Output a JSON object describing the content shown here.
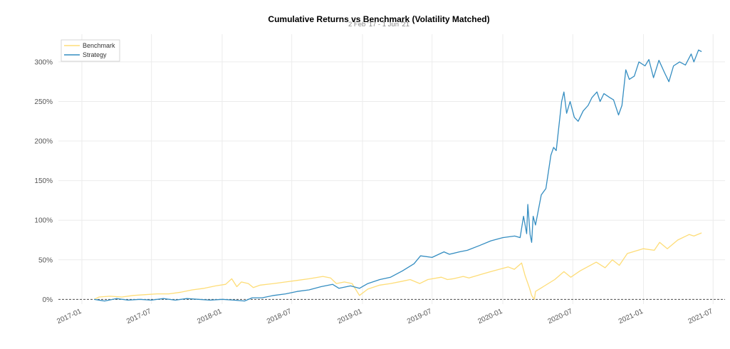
{
  "chart_data": {
    "type": "line",
    "title": "Cumulative Returns vs Benchmark (Volatility Matched)",
    "subtitle": "2 Feb '17 - 1 Jun '21",
    "xlabel": "",
    "ylabel": "",
    "ylim": [
      -0.06,
      3.35
    ],
    "xlim": [
      "2016-11-01",
      "2021-08-01"
    ],
    "y_tick_labels": [
      "0%",
      "50%",
      "100%",
      "150%",
      "200%",
      "250%",
      "300%"
    ],
    "y_tick_values": [
      0,
      0.5,
      1.0,
      1.5,
      2.0,
      2.5,
      3.0
    ],
    "x_tick_labels": [
      "2017-01",
      "2017-07",
      "2018-01",
      "2018-07",
      "2019-01",
      "2019-07",
      "2020-01",
      "2020-07",
      "2021-01",
      "2021-07"
    ],
    "x_tick_values": [
      "2017-01-01",
      "2017-07-01",
      "2018-01-01",
      "2018-07-01",
      "2019-01-01",
      "2019-07-01",
      "2020-01-01",
      "2020-07-01",
      "2021-01-01",
      "2021-07-01"
    ],
    "grid": true,
    "zero_line": "dashed",
    "legend": "top-left",
    "series": [
      {
        "name": "Benchmark",
        "color": "#fedd78",
        "points": [
          [
            "2017-02-02",
            0.0
          ],
          [
            "2017-02-15",
            0.03
          ],
          [
            "2017-03-15",
            0.04
          ],
          [
            "2017-04-15",
            0.03
          ],
          [
            "2017-05-15",
            0.05
          ],
          [
            "2017-06-15",
            0.06
          ],
          [
            "2017-07-15",
            0.07
          ],
          [
            "2017-08-15",
            0.07
          ],
          [
            "2017-09-15",
            0.09
          ],
          [
            "2017-10-15",
            0.12
          ],
          [
            "2017-11-15",
            0.14
          ],
          [
            "2017-12-15",
            0.17
          ],
          [
            "2018-01-10",
            0.19
          ],
          [
            "2018-01-26",
            0.26
          ],
          [
            "2018-02-08",
            0.16
          ],
          [
            "2018-02-20",
            0.22
          ],
          [
            "2018-03-10",
            0.2
          ],
          [
            "2018-03-23",
            0.15
          ],
          [
            "2018-04-10",
            0.18
          ],
          [
            "2018-05-15",
            0.2
          ],
          [
            "2018-06-15",
            0.22
          ],
          [
            "2018-07-15",
            0.24
          ],
          [
            "2018-08-15",
            0.26
          ],
          [
            "2018-09-20",
            0.29
          ],
          [
            "2018-10-10",
            0.27
          ],
          [
            "2018-10-25",
            0.2
          ],
          [
            "2018-11-15",
            0.22
          ],
          [
            "2018-12-05",
            0.2
          ],
          [
            "2018-12-24",
            0.05
          ],
          [
            "2019-01-15",
            0.13
          ],
          [
            "2019-02-15",
            0.18
          ],
          [
            "2019-03-15",
            0.2
          ],
          [
            "2019-04-15",
            0.23
          ],
          [
            "2019-05-05",
            0.25
          ],
          [
            "2019-05-30",
            0.2
          ],
          [
            "2019-06-20",
            0.25
          ],
          [
            "2019-07-25",
            0.28
          ],
          [
            "2019-08-10",
            0.25
          ],
          [
            "2019-08-25",
            0.26
          ],
          [
            "2019-09-20",
            0.29
          ],
          [
            "2019-10-05",
            0.27
          ],
          [
            "2019-11-15",
            0.33
          ],
          [
            "2019-12-15",
            0.37
          ],
          [
            "2020-01-15",
            0.41
          ],
          [
            "2020-01-31",
            0.38
          ],
          [
            "2020-02-19",
            0.46
          ],
          [
            "2020-02-28",
            0.3
          ],
          [
            "2020-03-10",
            0.15
          ],
          [
            "2020-03-16",
            0.05
          ],
          [
            "2020-03-23",
            0.0
          ],
          [
            "2020-03-26",
            0.1
          ],
          [
            "2020-04-15",
            0.16
          ],
          [
            "2020-05-15",
            0.25
          ],
          [
            "2020-06-08",
            0.35
          ],
          [
            "2020-06-26",
            0.28
          ],
          [
            "2020-07-20",
            0.36
          ],
          [
            "2020-08-31",
            0.47
          ],
          [
            "2020-09-23",
            0.4
          ],
          [
            "2020-10-12",
            0.5
          ],
          [
            "2020-10-30",
            0.43
          ],
          [
            "2020-11-20",
            0.58
          ],
          [
            "2020-12-31",
            0.64
          ],
          [
            "2021-01-29",
            0.62
          ],
          [
            "2021-02-12",
            0.72
          ],
          [
            "2021-03-04",
            0.64
          ],
          [
            "2021-03-31",
            0.75
          ],
          [
            "2021-04-30",
            0.82
          ],
          [
            "2021-05-12",
            0.8
          ],
          [
            "2021-06-01",
            0.84
          ]
        ]
      },
      {
        "name": "Strategy",
        "color": "#348dc1",
        "points": [
          [
            "2017-02-02",
            0.0
          ],
          [
            "2017-03-01",
            -0.02
          ],
          [
            "2017-04-01",
            0.01
          ],
          [
            "2017-05-01",
            -0.01
          ],
          [
            "2017-06-01",
            0.0
          ],
          [
            "2017-07-01",
            -0.01
          ],
          [
            "2017-08-01",
            0.01
          ],
          [
            "2017-09-01",
            -0.01
          ],
          [
            "2017-10-01",
            0.01
          ],
          [
            "2017-11-01",
            0.0
          ],
          [
            "2017-12-01",
            -0.01
          ],
          [
            "2018-01-01",
            0.0
          ],
          [
            "2018-02-01",
            -0.01
          ],
          [
            "2018-02-28",
            -0.02
          ],
          [
            "2018-03-20",
            0.02
          ],
          [
            "2018-04-15",
            0.02
          ],
          [
            "2018-05-15",
            0.05
          ],
          [
            "2018-06-15",
            0.07
          ],
          [
            "2018-07-15",
            0.1
          ],
          [
            "2018-08-15",
            0.12
          ],
          [
            "2018-09-15",
            0.16
          ],
          [
            "2018-10-15",
            0.19
          ],
          [
            "2018-11-01",
            0.14
          ],
          [
            "2018-12-01",
            0.17
          ],
          [
            "2018-12-24",
            0.14
          ],
          [
            "2019-01-15",
            0.2
          ],
          [
            "2019-02-15",
            0.25
          ],
          [
            "2019-03-15",
            0.28
          ],
          [
            "2019-04-15",
            0.36
          ],
          [
            "2019-05-15",
            0.45
          ],
          [
            "2019-06-01",
            0.55
          ],
          [
            "2019-07-01",
            0.53
          ],
          [
            "2019-08-01",
            0.6
          ],
          [
            "2019-08-15",
            0.57
          ],
          [
            "2019-09-10",
            0.6
          ],
          [
            "2019-10-01",
            0.62
          ],
          [
            "2019-11-01",
            0.68
          ],
          [
            "2019-12-01",
            0.74
          ],
          [
            "2020-01-01",
            0.78
          ],
          [
            "2020-02-01",
            0.8
          ],
          [
            "2020-02-15",
            0.78
          ],
          [
            "2020-02-24",
            1.05
          ],
          [
            "2020-03-03",
            0.83
          ],
          [
            "2020-03-06",
            1.2
          ],
          [
            "2020-03-12",
            0.82
          ],
          [
            "2020-03-16",
            0.72
          ],
          [
            "2020-03-20",
            1.05
          ],
          [
            "2020-03-26",
            0.94
          ],
          [
            "2020-04-10",
            1.32
          ],
          [
            "2020-04-22",
            1.4
          ],
          [
            "2020-05-05",
            1.82
          ],
          [
            "2020-05-12",
            1.92
          ],
          [
            "2020-05-19",
            1.88
          ],
          [
            "2020-05-25",
            2.15
          ],
          [
            "2020-06-02",
            2.5
          ],
          [
            "2020-06-08",
            2.62
          ],
          [
            "2020-06-15",
            2.35
          ],
          [
            "2020-06-24",
            2.5
          ],
          [
            "2020-07-05",
            2.3
          ],
          [
            "2020-07-15",
            2.25
          ],
          [
            "2020-07-28",
            2.38
          ],
          [
            "2020-08-10",
            2.45
          ],
          [
            "2020-08-20",
            2.55
          ],
          [
            "2020-09-02",
            2.62
          ],
          [
            "2020-09-10",
            2.5
          ],
          [
            "2020-09-20",
            2.6
          ],
          [
            "2020-10-05",
            2.55
          ],
          [
            "2020-10-15",
            2.52
          ],
          [
            "2020-10-28",
            2.33
          ],
          [
            "2020-11-06",
            2.45
          ],
          [
            "2020-11-16",
            2.9
          ],
          [
            "2020-11-25",
            2.78
          ],
          [
            "2020-12-08",
            2.82
          ],
          [
            "2020-12-20",
            3.0
          ],
          [
            "2021-01-05",
            2.95
          ],
          [
            "2021-01-15",
            3.03
          ],
          [
            "2021-01-27",
            2.8
          ],
          [
            "2021-02-10",
            3.02
          ],
          [
            "2021-02-25",
            2.86
          ],
          [
            "2021-03-08",
            2.75
          ],
          [
            "2021-03-20",
            2.95
          ],
          [
            "2021-04-05",
            3.0
          ],
          [
            "2021-04-20",
            2.96
          ],
          [
            "2021-05-05",
            3.1
          ],
          [
            "2021-05-12",
            3.0
          ],
          [
            "2021-05-24",
            3.15
          ],
          [
            "2021-06-01",
            3.13
          ]
        ]
      }
    ]
  }
}
